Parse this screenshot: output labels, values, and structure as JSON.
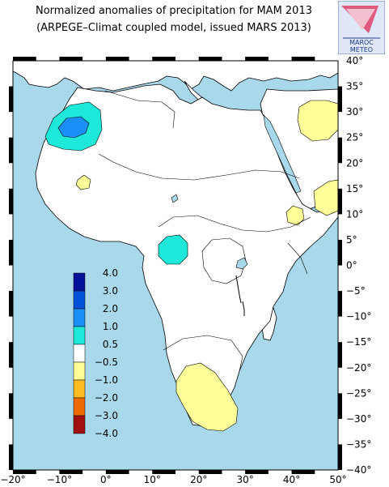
{
  "title_line1": "Normalized anomalies of precipitation for MAM 2013",
  "title_line2": "(ARPEGE–Climat coupled model, issued MARS 2013)",
  "logo": {
    "line1": "MAROC",
    "line2": "METEO"
  },
  "map": {
    "lon_range": [
      -20,
      50
    ],
    "lat_range": [
      -40,
      40
    ],
    "x_ticks": [
      "−20°",
      "−10°",
      "0°",
      "10°",
      "20°",
      "30°",
      "40°",
      "50°"
    ],
    "y_ticks": [
      "40°",
      "35°",
      "30°",
      "25°",
      "20°",
      "15°",
      "10°",
      "5°",
      "0°",
      "−5°",
      "−10°",
      "−15°",
      "−20°",
      "−25°",
      "−30°",
      "−35°",
      "−40°"
    ],
    "ocean_color": "#a8d8ea",
    "land_color": "#ffffff"
  },
  "legend": {
    "labels": [
      "4.0",
      "3.0",
      "2.0",
      "1.0",
      "0.5",
      "−0.5",
      "−1.0",
      "−2.0",
      "−3.0",
      "−4.0"
    ],
    "colors": [
      "#00129a",
      "#0050d8",
      "#1a8ff5",
      "#1ee8d8",
      "#ffffff",
      "#ffff99",
      "#ffbb22",
      "#ee6a00",
      "#a01010"
    ]
  }
}
